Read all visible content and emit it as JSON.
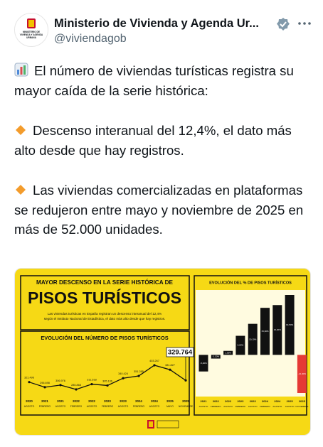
{
  "tweet": {
    "author_name": "Ministerio de Vivienda y Agenda Ur...",
    "handle": "@viviendagob",
    "avatar_text": "MINISTERIO DE VIVIENDA Y AGENDA URBANA",
    "paragraphs": [
      "El número de viviendas turísticas registra su mayor caída de la serie histórica:",
      "Descenso interanual del 12,4%, el dato más alto desde que hay registros.",
      "Las viviendas comercializadas en plataformas se redujeron entre mayo y noviembre de 2025 en más de 52.000 unidades."
    ]
  },
  "image": {
    "title_line1": "MAYOR DESCENSO EN LA SERIE HISTÓRICA DE",
    "title_line2": "PISOS TURÍSTICOS",
    "description": [
      "Las viviendas turísticas en España registran un descenso interanual del 12,4%",
      "según el Instituto Nacional de Estadística, el dato más alto desde que hay registros."
    ]
  },
  "chart_data": [
    {
      "type": "line",
      "title": "EVOLUCIÓN DEL NÚMERO DE PISOS TURÍSTICOS",
      "color": "#111111",
      "highlight_last": true,
      "categories": [
        [
          "2020",
          "AGOSTO"
        ],
        [
          "2021",
          "FEBRERO"
        ],
        [
          "2021",
          "AGOSTO"
        ],
        [
          "2022",
          "FEBRERO"
        ],
        [
          "2022",
          "AGOSTO"
        ],
        [
          "2023",
          "FEBRERO"
        ],
        [
          "2023",
          "AGOSTO"
        ],
        [
          "2024",
          "FEBRERO"
        ],
        [
          "2024",
          "AGOSTO"
        ],
        [
          "2025",
          "MAYO"
        ],
        [
          "2025",
          "NOVIEMBRE"
        ]
      ],
      "values": [
        321496,
        296698,
        306976,
        285868,
        311518,
        305136,
        340424,
        351285,
        403267,
        381827,
        329764
      ],
      "value_labels": [
        "321.496",
        "296.698",
        "306.976",
        "285.868",
        "311.518",
        "305.136",
        "340.424",
        "351.285",
        "403.267",
        "381.827",
        "329.764"
      ]
    },
    {
      "type": "bar",
      "title": "EVOLUCIÓN DEL % DE PISOS TURÍSTICOS",
      "categories": [
        [
          "2021",
          "AGOSTO"
        ],
        [
          "2022",
          "FEBRERO"
        ],
        [
          "2022",
          "AGOSTO"
        ],
        [
          "2023",
          "FEBRERO"
        ],
        [
          "2023",
          "AGOSTO"
        ],
        [
          "2024",
          "FEBRERO"
        ],
        [
          "2024",
          "AGOSTO"
        ],
        [
          "2025",
          "AGOSTO"
        ],
        [
          "2025",
          "NOVIEMBRE"
        ]
      ],
      "values": [
        -5.4,
        -1.2,
        1.3,
        6.2,
        10.1,
        15.3,
        16.2,
        19.5,
        -12.4
      ],
      "value_labels": [
        "-5,40%",
        "-1,20%",
        "1,30%",
        "6,20%",
        "10,10%",
        "15,30%",
        "16,20%",
        "19,50%",
        "-12,40%"
      ],
      "colors": [
        "#111111",
        "#111111",
        "#111111",
        "#111111",
        "#111111",
        "#111111",
        "#111111",
        "#111111",
        "#e53935"
      ]
    }
  ]
}
